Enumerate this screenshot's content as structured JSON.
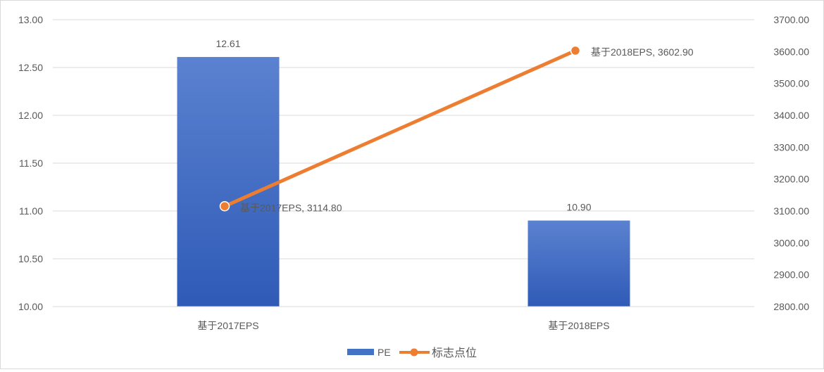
{
  "chart_data": {
    "type": "bar",
    "categories": [
      "基于2017EPS",
      "基于2018EPS"
    ],
    "series": [
      {
        "name": "PE",
        "type": "bar",
        "axis": "left",
        "values": [
          12.61,
          10.9
        ],
        "data_labels": [
          "12.61",
          "10.90"
        ],
        "color": "#4472C4"
      },
      {
        "name": "标志点位",
        "type": "line",
        "axis": "right",
        "values": [
          3114.8,
          3602.9
        ],
        "data_labels": [
          "基于2017EPS, 3114.80",
          "基于2018EPS, 3602.90"
        ],
        "color": "#ED7D31"
      }
    ],
    "y_left": {
      "range": [
        10.0,
        13.0
      ],
      "ticks": [
        "10.00",
        "10.50",
        "11.00",
        "11.50",
        "12.00",
        "12.50",
        "13.00"
      ]
    },
    "y_right": {
      "range": [
        2800.0,
        3700.0
      ],
      "ticks": [
        "2800.00",
        "2900.00",
        "3000.00",
        "3100.00",
        "3200.00",
        "3300.00",
        "3400.00",
        "3500.00",
        "3600.00",
        "3700.00"
      ]
    },
    "grid": true,
    "legend_position": "bottom"
  }
}
